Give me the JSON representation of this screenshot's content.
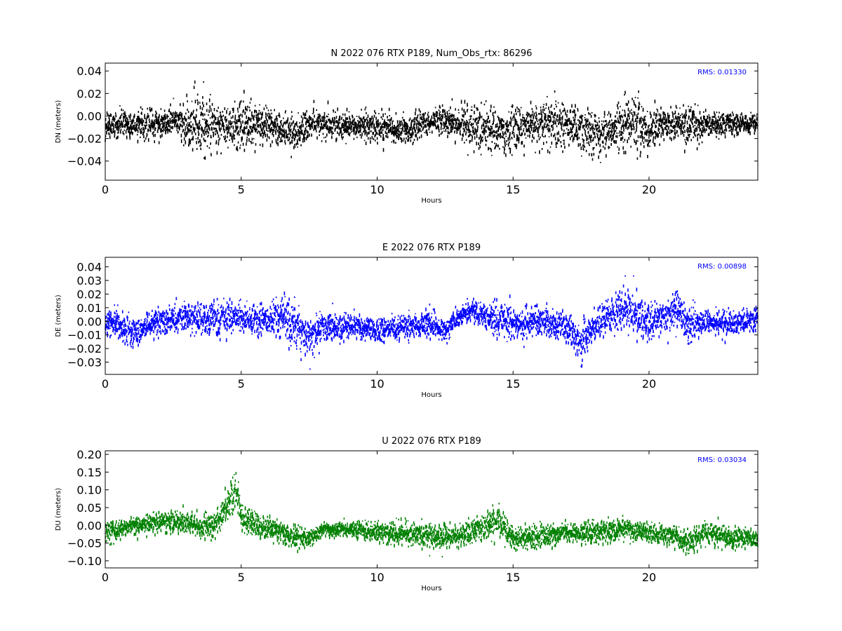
{
  "chart_data": [
    {
      "type": "scatter",
      "title": "N 2022 076 RTX  P189, Num_Obs_rtx: 86296",
      "xlabel": "Hours",
      "ylabel": "DN (meters)",
      "xlim": [
        0,
        24
      ],
      "ylim": [
        -0.057,
        0.047
      ],
      "xticks": [
        0,
        5,
        10,
        15,
        20
      ],
      "xtick_labels": [
        "0",
        "5",
        "10",
        "15",
        "20"
      ],
      "yticks": [
        -0.04,
        -0.02,
        0.0,
        0.02,
        0.04
      ],
      "ytick_labels": [
        "−0.04",
        "−0.02",
        "0.00",
        "0.02",
        "0.04"
      ],
      "color": "#000000",
      "annotation": "RMS:  0.01330",
      "annotation_color": "#0000ff",
      "series_shape": {
        "x": [
          0,
          1,
          2,
          2.5,
          3,
          3.5,
          4,
          4.5,
          5,
          5.5,
          6,
          6.5,
          7,
          7.5,
          8,
          9,
          10,
          11,
          11.5,
          12,
          12.5,
          13,
          13.5,
          14,
          14.5,
          15,
          15.5,
          16,
          16.5,
          17,
          17.5,
          18,
          18.5,
          19,
          19.5,
          20,
          20.5,
          21,
          21.5,
          22,
          22.5,
          23,
          23.5,
          24
        ],
        "center": [
          -0.006,
          -0.008,
          -0.006,
          -0.004,
          -0.008,
          -0.006,
          -0.008,
          -0.01,
          -0.006,
          -0.006,
          -0.006,
          -0.012,
          -0.016,
          -0.008,
          -0.008,
          -0.008,
          -0.01,
          -0.012,
          -0.01,
          -0.004,
          -0.003,
          -0.006,
          -0.01,
          -0.012,
          -0.014,
          -0.01,
          -0.008,
          -0.008,
          -0.006,
          -0.008,
          -0.012,
          -0.018,
          -0.012,
          -0.006,
          -0.004,
          -0.012,
          -0.008,
          -0.006,
          -0.008,
          -0.008,
          -0.006,
          -0.006,
          -0.006,
          -0.006
        ],
        "spread": [
          0.01,
          0.01,
          0.01,
          0.01,
          0.018,
          0.024,
          0.016,
          0.014,
          0.022,
          0.018,
          0.014,
          0.014,
          0.014,
          0.01,
          0.01,
          0.01,
          0.012,
          0.01,
          0.012,
          0.01,
          0.012,
          0.01,
          0.02,
          0.016,
          0.02,
          0.018,
          0.016,
          0.018,
          0.018,
          0.016,
          0.018,
          0.018,
          0.012,
          0.018,
          0.024,
          0.02,
          0.012,
          0.012,
          0.016,
          0.01,
          0.01,
          0.008,
          0.008,
          0.008
        ]
      }
    },
    {
      "type": "scatter",
      "title": "E 2022 076 RTX  P189",
      "xlabel": "Hours",
      "ylabel": "DE (meters)",
      "xlim": [
        0,
        24
      ],
      "ylim": [
        -0.039,
        0.047
      ],
      "xticks": [
        0,
        5,
        10,
        15,
        20
      ],
      "xtick_labels": [
        "0",
        "5",
        "10",
        "15",
        "20"
      ],
      "yticks": [
        -0.03,
        -0.02,
        -0.01,
        0.0,
        0.01,
        0.02,
        0.03,
        0.04
      ],
      "ytick_labels": [
        "−0.03",
        "−0.02",
        "−0.01",
        "0.00",
        "0.01",
        "0.02",
        "0.03",
        "0.04"
      ],
      "color": "#0000ff",
      "annotation": "RMS:  0.00898",
      "annotation_color": "#0000ff",
      "series_shape": {
        "x": [
          0,
          0.5,
          1,
          1.5,
          2,
          3,
          4,
          5,
          6,
          6.5,
          7,
          7.5,
          8,
          9,
          10,
          11,
          12,
          12.5,
          13,
          13.5,
          14,
          14.5,
          15,
          15.5,
          16,
          17,
          17.5,
          18,
          18.5,
          19,
          19.5,
          20,
          20.5,
          21,
          21.5,
          22,
          23,
          24
        ],
        "center": [
          0.0,
          -0.002,
          -0.008,
          -0.004,
          0.0,
          0.004,
          0.002,
          0.004,
          0.0,
          0.006,
          -0.004,
          -0.012,
          -0.004,
          -0.004,
          -0.006,
          -0.004,
          -0.002,
          -0.008,
          0.004,
          0.008,
          0.004,
          0.002,
          -0.002,
          0.0,
          0.0,
          -0.004,
          -0.016,
          -0.004,
          0.004,
          0.01,
          0.006,
          0.0,
          0.004,
          0.008,
          -0.004,
          0.0,
          -0.002,
          0.002
        ],
        "spread": [
          0.008,
          0.008,
          0.01,
          0.008,
          0.008,
          0.01,
          0.01,
          0.01,
          0.01,
          0.014,
          0.014,
          0.014,
          0.01,
          0.008,
          0.008,
          0.008,
          0.01,
          0.008,
          0.006,
          0.006,
          0.008,
          0.012,
          0.012,
          0.01,
          0.01,
          0.008,
          0.012,
          0.01,
          0.01,
          0.014,
          0.014,
          0.012,
          0.01,
          0.012,
          0.012,
          0.008,
          0.008,
          0.008
        ]
      }
    },
    {
      "type": "scatter",
      "title": "U 2022 076 RTX  P189",
      "xlabel": "Hours",
      "ylabel": "DU (meters)",
      "xlim": [
        0,
        24
      ],
      "ylim": [
        -0.12,
        0.21
      ],
      "xticks": [
        0,
        5,
        10,
        15,
        20
      ],
      "xtick_labels": [
        "0",
        "5",
        "10",
        "15",
        "20"
      ],
      "yticks": [
        -0.1,
        -0.05,
        0.0,
        0.05,
        0.1,
        0.15,
        0.2
      ],
      "ytick_labels": [
        "−0.10",
        "−0.05",
        "0.00",
        "0.05",
        "0.10",
        "0.15",
        "0.20"
      ],
      "color": "#008000",
      "annotation": "RMS:  0.03034",
      "annotation_color": "#0000ff",
      "series_shape": {
        "x": [
          0,
          1,
          2,
          3,
          3.5,
          4,
          4.5,
          4.8,
          5,
          5.5,
          6,
          7,
          7.5,
          8,
          9,
          10,
          11,
          12,
          13,
          14,
          14.5,
          15,
          16,
          17,
          18,
          19,
          20,
          21,
          21.5,
          22,
          23,
          24
        ],
        "center": [
          -0.02,
          0.0,
          0.01,
          0.01,
          0.0,
          0.0,
          0.05,
          0.11,
          0.02,
          0.0,
          -0.01,
          -0.03,
          -0.04,
          -0.01,
          -0.01,
          -0.02,
          -0.02,
          -0.03,
          -0.03,
          0.0,
          0.02,
          -0.04,
          -0.03,
          -0.02,
          -0.02,
          -0.01,
          -0.02,
          -0.03,
          -0.05,
          -0.02,
          -0.03,
          -0.04
        ],
        "spread": [
          0.025,
          0.025,
          0.025,
          0.025,
          0.025,
          0.03,
          0.04,
          0.06,
          0.04,
          0.03,
          0.03,
          0.025,
          0.02,
          0.02,
          0.02,
          0.025,
          0.03,
          0.03,
          0.025,
          0.035,
          0.035,
          0.03,
          0.03,
          0.025,
          0.03,
          0.025,
          0.025,
          0.025,
          0.03,
          0.025,
          0.025,
          0.02
        ]
      }
    }
  ]
}
